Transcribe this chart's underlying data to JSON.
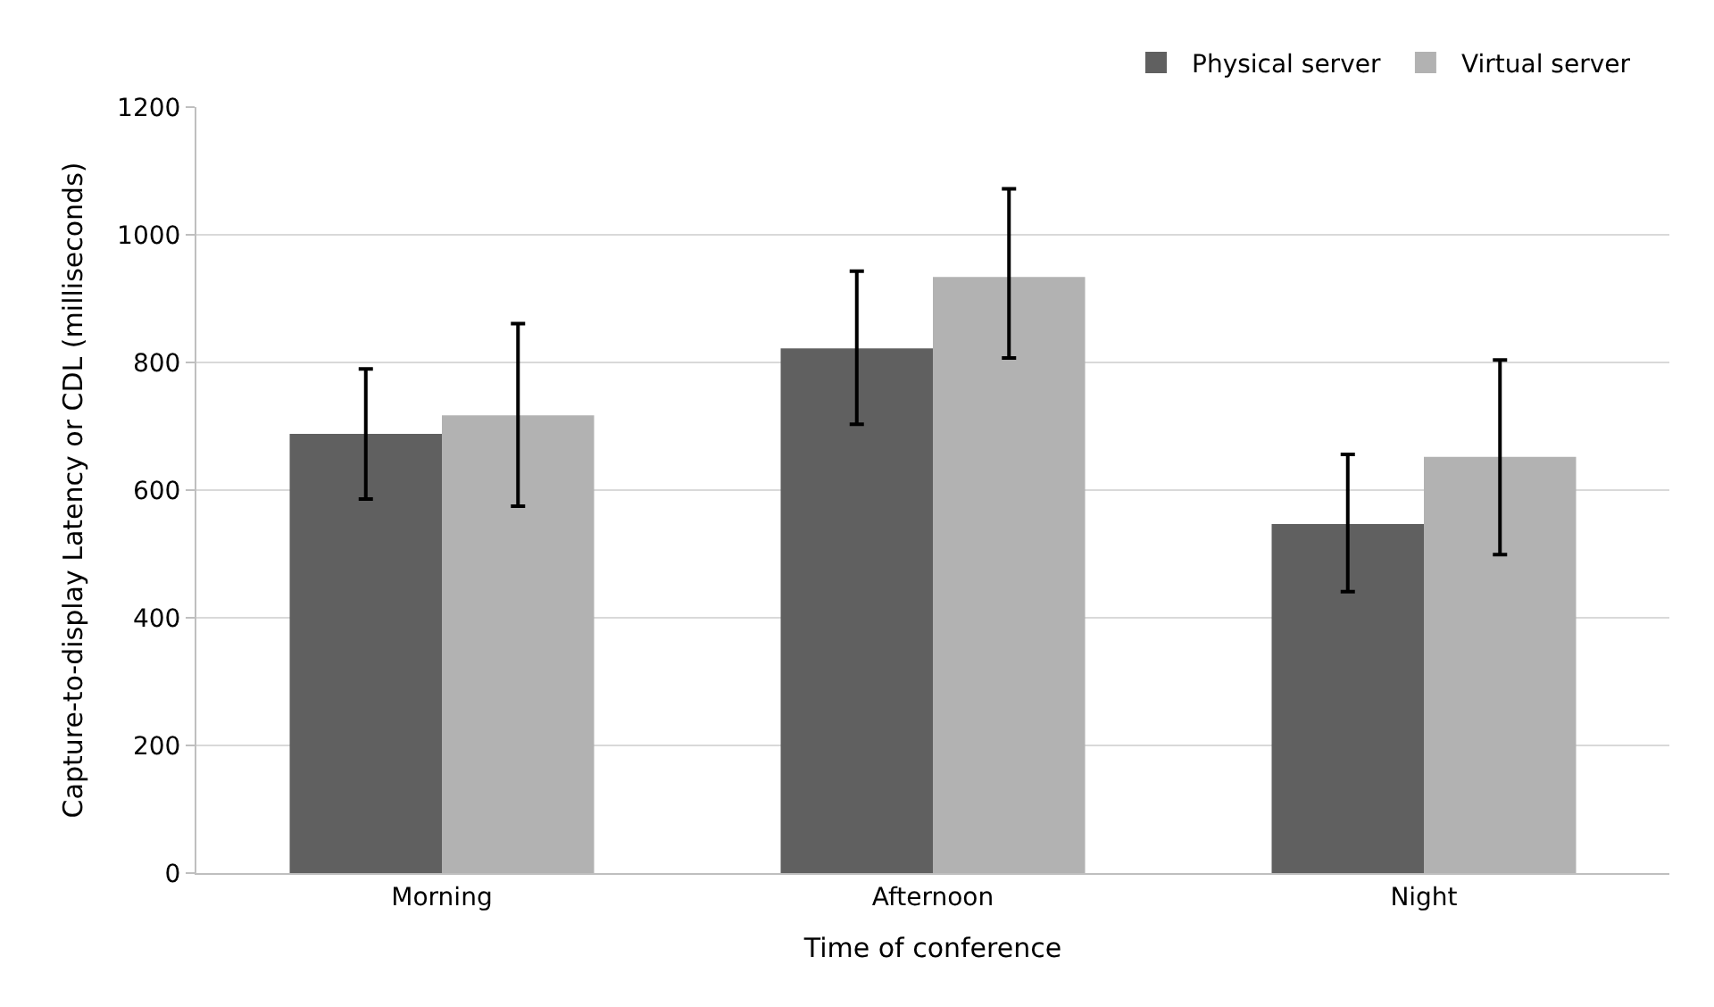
{
  "chart_data": {
    "type": "bar",
    "xlabel": "Time of conference",
    "ylabel": "Capture-to-display Latency or CDL (milliseconds)",
    "categories": [
      "Morning",
      "Afternoon",
      "Night"
    ],
    "series": [
      {
        "name": "Physical server",
        "color": "#606060",
        "values": [
          688,
          822,
          547
        ],
        "errors": [
          [
            586,
            790
          ],
          [
            703,
            943
          ],
          [
            441,
            656
          ]
        ]
      },
      {
        "name": "Virtual server",
        "color": "#b2b2b2",
        "values": [
          717,
          934,
          652
        ],
        "errors": [
          [
            575,
            861
          ],
          [
            807,
            1072
          ],
          [
            499,
            804
          ]
        ]
      }
    ],
    "ylim": [
      0,
      1200
    ],
    "yticks": [
      0,
      200,
      400,
      600,
      800,
      1000,
      1200
    ],
    "grid": "y",
    "legend": "top right"
  }
}
